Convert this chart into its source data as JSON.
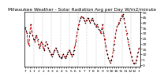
{
  "title": "Milwaukee Weather - Solar Radiation Avg per Day W/m2/minute",
  "background_color": "#ffffff",
  "line_color": "#cc0000",
  "grid_color": "#aaaaaa",
  "ylim": [
    -2,
    50
  ],
  "yticks": [
    0,
    5,
    10,
    15,
    20,
    25,
    30,
    35,
    40,
    45,
    50
  ],
  "title_fontsize": 4.2,
  "tick_fontsize": 3.2,
  "values": [
    35,
    32,
    30,
    22,
    18,
    30,
    38,
    32,
    28,
    24,
    22,
    26,
    28,
    24,
    20,
    16,
    18,
    22,
    20,
    16,
    14,
    18,
    22,
    20,
    16,
    14,
    12,
    10,
    8,
    10,
    12,
    14,
    16,
    14,
    12,
    10,
    8,
    7,
    6,
    8,
    10,
    8,
    6,
    8,
    10,
    12,
    14,
    12,
    10,
    8,
    10,
    14,
    18,
    22,
    28,
    34,
    38,
    42,
    44,
    46,
    45,
    44,
    42,
    40,
    42,
    44,
    44,
    42,
    40,
    42,
    44,
    42,
    40,
    38,
    36,
    38,
    36,
    34,
    32,
    30,
    34,
    38,
    30,
    24,
    18,
    14,
    10,
    6,
    4,
    2,
    4,
    8,
    14,
    20,
    26,
    32,
    36,
    38,
    40,
    42,
    44,
    46,
    48,
    44,
    40,
    36,
    30,
    24,
    20,
    16,
    12,
    8,
    4,
    2,
    1,
    2,
    4,
    8,
    12,
    16
  ],
  "x_tick_labels": [
    "7",
    "",
    "1",
    "",
    "1",
    "",
    "2",
    "",
    "2",
    "",
    "3",
    "",
    "3",
    "",
    "4",
    "",
    "4",
    "",
    "5",
    "",
    "5",
    "",
    "6",
    "",
    "6",
    "",
    "7",
    "",
    "7",
    "",
    "8",
    "",
    "8",
    "",
    "9",
    "",
    "9",
    "",
    "10",
    "",
    "10",
    "",
    "11",
    "",
    "11",
    "",
    "12",
    "",
    "12",
    "",
    "1"
  ],
  "n_grid_lines": 13
}
